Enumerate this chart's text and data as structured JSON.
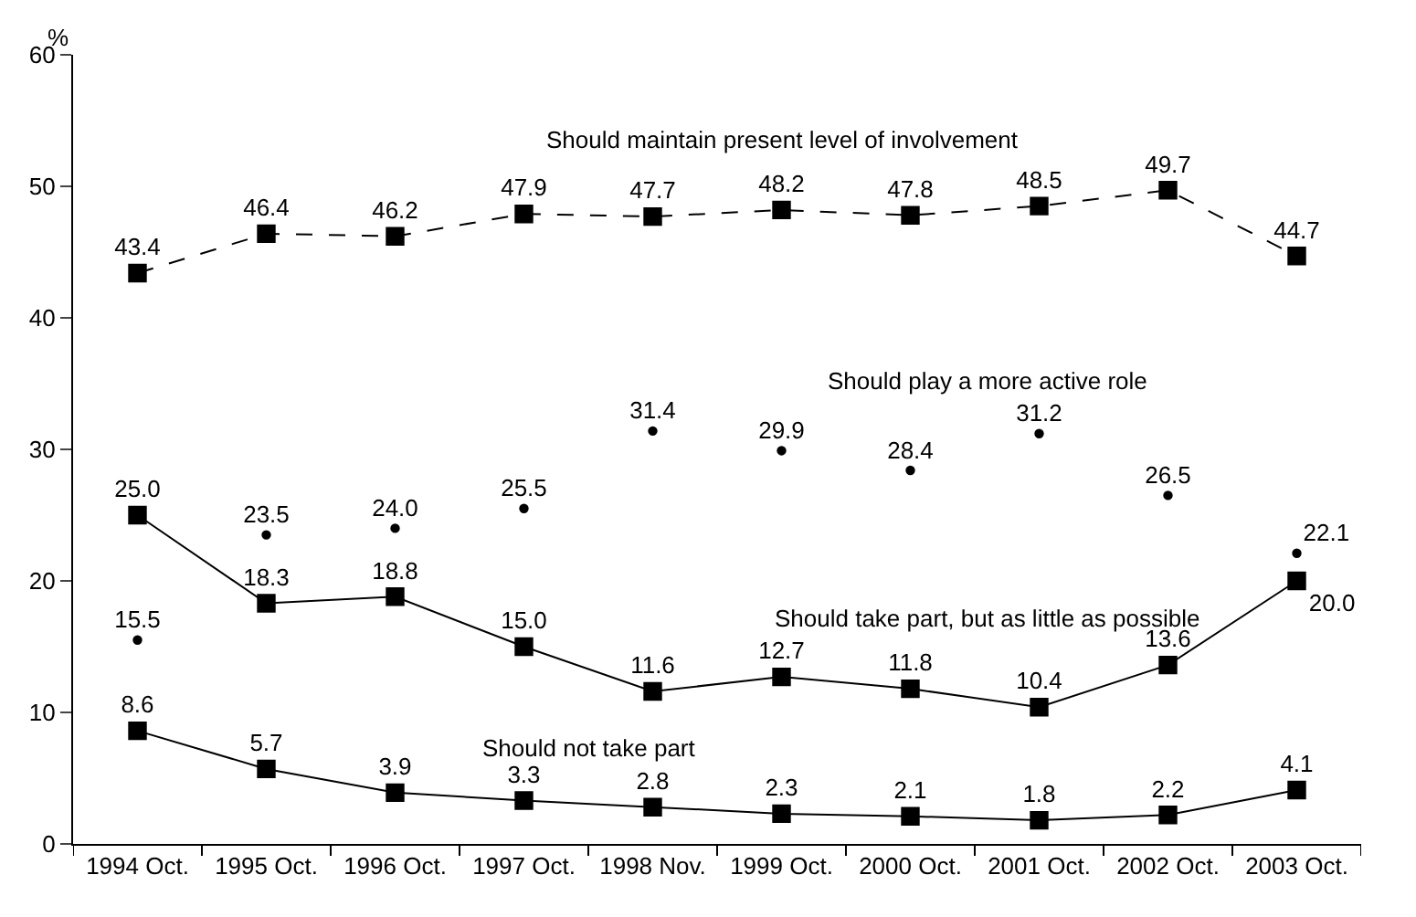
{
  "chart_data": {
    "type": "line",
    "ylabel": "%",
    "categories": [
      "1994 Oct.",
      "1995 Oct.",
      "1996 Oct.",
      "1997 Oct.",
      "1998 Nov.",
      "1999 Oct.",
      "2000 Oct.",
      "2001 Oct.",
      "2002 Oct.",
      "2003 Oct."
    ],
    "series": [
      {
        "name": "Should maintain present level of involvement",
        "color": "#000000",
        "line_style": "dashed",
        "marker": "square",
        "values": [
          43.4,
          46.4,
          46.2,
          47.9,
          47.7,
          48.2,
          47.8,
          48.5,
          49.7,
          44.7
        ],
        "value_labels": [
          "43.4",
          "46.4",
          "46.2",
          "47.9",
          "47.7",
          "48.2",
          "47.8",
          "48.5",
          "49.7",
          "44.7"
        ]
      },
      {
        "name": "Should play a more active role",
        "type": "scatter",
        "color": "#000000",
        "marker": "circle",
        "values": [
          15.5,
          23.5,
          24.0,
          25.5,
          31.4,
          29.9,
          28.4,
          31.2,
          26.5,
          22.1
        ],
        "value_labels": [
          "15.5",
          "23.5",
          "24.0",
          "25.5",
          "31.4",
          "29.9",
          "28.4",
          "31.2",
          "26.5",
          "22.1"
        ]
      },
      {
        "name": "Should take part, but as little as possible",
        "color": "#000000",
        "line_style": "solid",
        "marker": "square",
        "values": [
          25.0,
          18.3,
          18.8,
          15.0,
          11.6,
          12.7,
          11.8,
          10.4,
          13.6,
          20.0
        ],
        "value_labels": [
          "25.0",
          "18.3",
          "18.8",
          "15.0",
          "11.6",
          "12.7",
          "11.8",
          "10.4",
          "13.6",
          "20.0"
        ]
      },
      {
        "name": "Should not take part",
        "color": "#000000",
        "line_style": "solid",
        "marker": "square",
        "values": [
          8.6,
          5.7,
          3.9,
          3.3,
          2.8,
          2.3,
          2.1,
          1.8,
          2.2,
          4.1
        ],
        "value_labels": [
          "8.6",
          "5.7",
          "3.9",
          "3.3",
          "2.8",
          "2.3",
          "2.1",
          "1.8",
          "2.2",
          "4.1"
        ]
      }
    ],
    "ylim": [
      0,
      60
    ],
    "yticks": [
      0,
      10,
      20,
      30,
      40,
      50,
      60
    ],
    "legend": false
  }
}
